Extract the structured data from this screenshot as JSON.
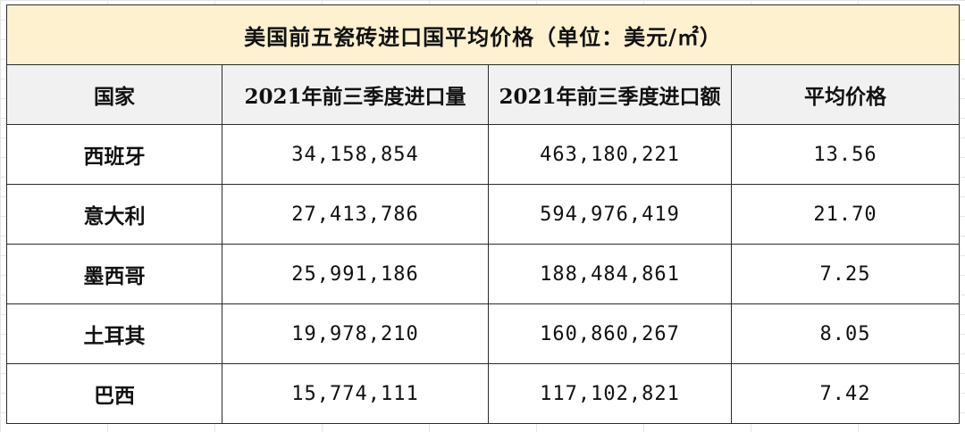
{
  "table": {
    "title": "美国前五瓷砖进口国平均价格（单位：美元/㎡）",
    "headers": [
      "国家",
      "2021年前三季度进口量",
      "2021年前三季度进口额",
      "平均价格"
    ],
    "rows": [
      {
        "country": "西班牙",
        "volume": "34,158,854",
        "amount": "463,180,221",
        "avg_price": "13.56"
      },
      {
        "country": "意大利",
        "volume": "27,413,786",
        "amount": "594,976,419",
        "avg_price": "21.70"
      },
      {
        "country": "墨西哥",
        "volume": "25,991,186",
        "amount": "188,484,861",
        "avg_price": "7.25"
      },
      {
        "country": "土耳其",
        "volume": "19,978,210",
        "amount": "160,860,267",
        "avg_price": "8.05"
      },
      {
        "country": "巴西",
        "volume": "15,774,111",
        "amount": "117,102,821",
        "avg_price": "7.42"
      }
    ]
  },
  "colors": {
    "title_bg": "#fdf1cf",
    "header_bg": "#f1f1f1",
    "border": "#2b2b2b"
  }
}
